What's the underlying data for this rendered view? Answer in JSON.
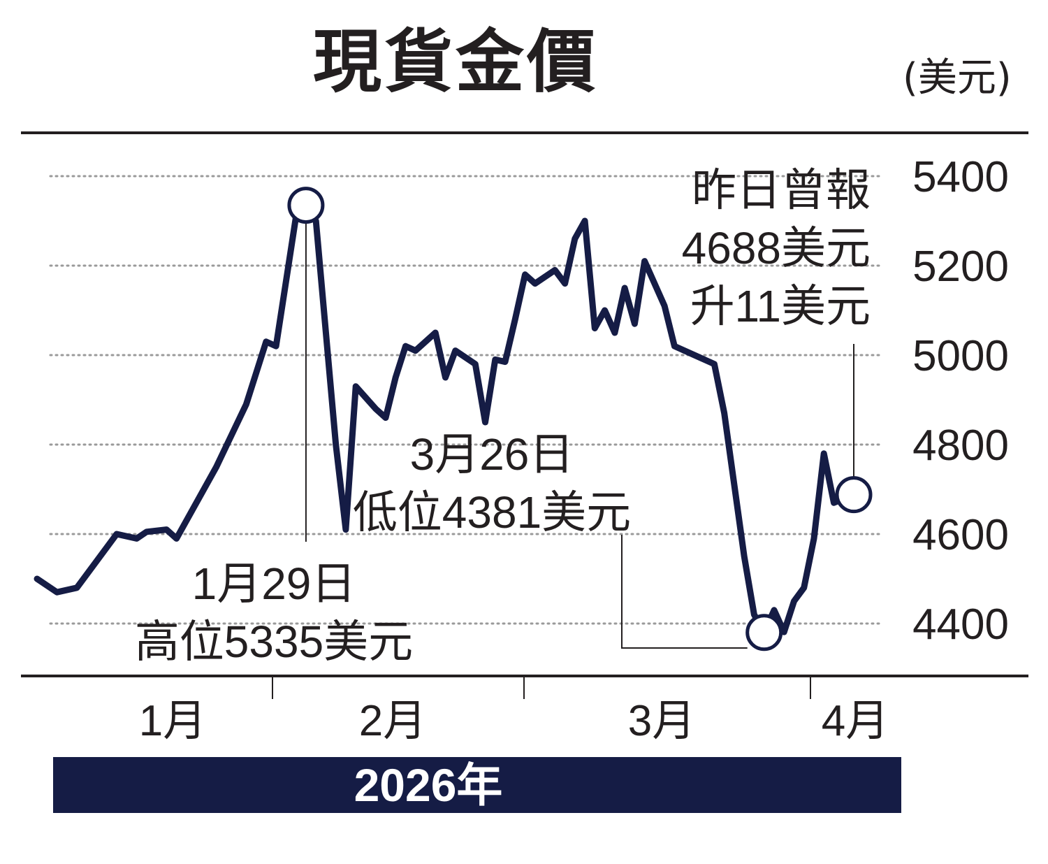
{
  "chart_data": {
    "type": "line",
    "title": "現貨金價",
    "unit": "(美元)",
    "y_ticks": [
      5400,
      5200,
      5000,
      4800,
      4600,
      4400
    ],
    "ylim": [
      4300,
      5450
    ],
    "x_month_labels": [
      "1月",
      "2月",
      "3月",
      "4月"
    ],
    "x_year_label": "2026年",
    "grid": "dotted horizontal",
    "series": [
      {
        "color": "#151c45",
        "points": [
          [
            1,
            4500
          ],
          [
            3,
            4470
          ],
          [
            5,
            4480
          ],
          [
            9,
            4600
          ],
          [
            11,
            4590
          ],
          [
            12,
            4605
          ],
          [
            14,
            4610
          ],
          [
            15,
            4590
          ],
          [
            19,
            4750
          ],
          [
            22,
            4890
          ],
          [
            24,
            5030
          ],
          [
            25,
            5020
          ],
          [
            27,
            5310
          ],
          [
            28,
            5335
          ],
          [
            29,
            5300
          ],
          [
            31,
            4800
          ],
          [
            32,
            4610
          ],
          [
            33,
            4930
          ],
          [
            35,
            4880
          ],
          [
            36,
            4860
          ],
          [
            37,
            4950
          ],
          [
            38,
            5020
          ],
          [
            39,
            5010
          ],
          [
            41,
            5050
          ],
          [
            42,
            4950
          ],
          [
            43,
            5010
          ],
          [
            45,
            4980
          ],
          [
            46,
            4850
          ],
          [
            47,
            4990
          ],
          [
            48,
            4985
          ],
          [
            49,
            5080
          ],
          [
            50,
            5180
          ],
          [
            51,
            5160
          ],
          [
            53,
            5190
          ],
          [
            54,
            5160
          ],
          [
            55,
            5260
          ],
          [
            56,
            5300
          ],
          [
            57,
            5060
          ],
          [
            58,
            5100
          ],
          [
            59,
            5050
          ],
          [
            60,
            5150
          ],
          [
            61,
            5070
          ],
          [
            62,
            5210
          ],
          [
            64,
            5110
          ],
          [
            65,
            5020
          ],
          [
            67,
            5000
          ],
          [
            69,
            4980
          ],
          [
            70,
            4870
          ],
          [
            72,
            4550
          ],
          [
            73,
            4420
          ],
          [
            74,
            4380
          ],
          [
            75,
            4430
          ],
          [
            76,
            4381
          ],
          [
            77,
            4450
          ],
          [
            78,
            4480
          ],
          [
            79,
            4590
          ],
          [
            80,
            4780
          ],
          [
            81,
            4670
          ],
          [
            83,
            4688
          ]
        ]
      }
    ],
    "annotations": [
      {
        "lines": [
          "1月29日",
          "高位5335美元"
        ]
      },
      {
        "lines": [
          "3月26日",
          "低位4381美元"
        ]
      },
      {
        "lines": [
          "昨日曾報",
          "4688美元",
          "升11美元"
        ]
      }
    ]
  }
}
